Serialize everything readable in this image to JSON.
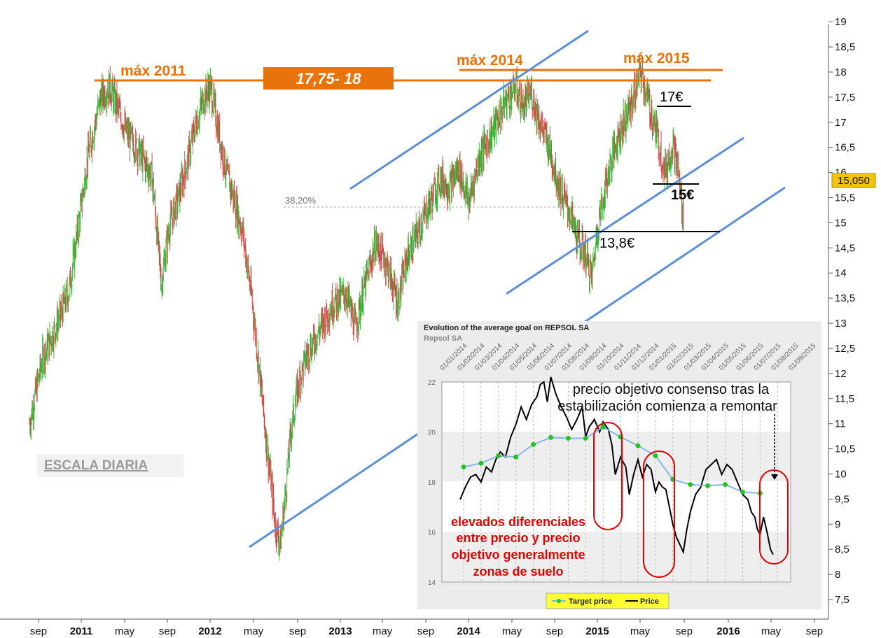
{
  "chart_data": [
    {
      "type": "candlestick",
      "scale": "daily",
      "ylim": [
        7.3,
        19.3
      ],
      "y_ticks": [
        "19",
        "18,5",
        "18",
        "17,5",
        "17",
        "16,5",
        "16",
        "15,5",
        "15",
        "14,5",
        "14",
        "13,5",
        "13",
        "12,5",
        "12",
        "11,5",
        "11",
        "10,5",
        "10",
        "9,5",
        "9",
        "8,5",
        "8",
        "7,5"
      ],
      "y_tick_values": [
        19,
        18.5,
        18,
        17.5,
        17,
        16.5,
        16,
        15.5,
        15,
        14.5,
        14,
        13.5,
        13,
        12.5,
        12,
        11.5,
        11,
        10.5,
        10,
        9.5,
        9,
        8.5,
        8,
        7.5
      ],
      "x_ticks": [
        {
          "label": "sep",
          "bold": false
        },
        {
          "label": "2011",
          "bold": true
        },
        {
          "label": "may",
          "bold": false
        },
        {
          "label": "sep",
          "bold": false
        },
        {
          "label": "2012",
          "bold": true
        },
        {
          "label": "may",
          "bold": false
        },
        {
          "label": "sep",
          "bold": false
        },
        {
          "label": "2013",
          "bold": true
        },
        {
          "label": "may",
          "bold": false
        },
        {
          "label": "sep",
          "bold": false
        },
        {
          "label": "2014",
          "bold": true
        },
        {
          "label": "may",
          "bold": false
        },
        {
          "label": "sep",
          "bold": false
        },
        {
          "label": "2015",
          "bold": true
        },
        {
          "label": "may",
          "bold": false
        },
        {
          "label": "sep",
          "bold": false
        },
        {
          "label": "2016",
          "bold": true
        },
        {
          "label": "may",
          "bold": false
        },
        {
          "label": "sep",
          "bold": false
        }
      ],
      "last_price_label": "15,050",
      "last_price": 15.05,
      "price_path": [
        [
          2010.6,
          11.0
        ],
        [
          2010.7,
          12.3
        ],
        [
          2010.8,
          12.9
        ],
        [
          2010.9,
          13.6
        ],
        [
          2010.97,
          14.8
        ],
        [
          2011.05,
          16.3
        ],
        [
          2011.15,
          17.5
        ],
        [
          2011.22,
          17.7
        ],
        [
          2011.28,
          17.3
        ],
        [
          2011.35,
          16.8
        ],
        [
          2011.45,
          16.4
        ],
        [
          2011.55,
          15.9
        ],
        [
          2011.62,
          13.8
        ],
        [
          2011.68,
          14.9
        ],
        [
          2011.75,
          15.5
        ],
        [
          2011.82,
          16.2
        ],
        [
          2011.88,
          16.9
        ],
        [
          2011.95,
          17.5
        ],
        [
          2012.0,
          17.7
        ],
        [
          2012.05,
          17.0
        ],
        [
          2012.12,
          16.0
        ],
        [
          2012.18,
          15.5
        ],
        [
          2012.25,
          14.8
        ],
        [
          2012.32,
          13.5
        ],
        [
          2012.38,
          12.0
        ],
        [
          2012.43,
          10.7
        ],
        [
          2012.47,
          9.8
        ],
        [
          2012.5,
          9.0
        ],
        [
          2012.54,
          8.6
        ],
        [
          2012.58,
          9.6
        ],
        [
          2012.62,
          10.8
        ],
        [
          2012.68,
          11.8
        ],
        [
          2012.75,
          12.4
        ],
        [
          2012.85,
          12.9
        ],
        [
          2012.95,
          13.4
        ],
        [
          2013.05,
          13.6
        ],
        [
          2013.12,
          12.9
        ],
        [
          2013.2,
          13.8
        ],
        [
          2013.28,
          14.6
        ],
        [
          2013.36,
          14.2
        ],
        [
          2013.45,
          13.4
        ],
        [
          2013.52,
          14.3
        ],
        [
          2013.62,
          14.9
        ],
        [
          2013.7,
          15.4
        ],
        [
          2013.78,
          15.9
        ],
        [
          2013.85,
          15.7
        ],
        [
          2013.92,
          16.1
        ],
        [
          2014.0,
          15.4
        ],
        [
          2014.08,
          16.3
        ],
        [
          2014.18,
          16.8
        ],
        [
          2014.28,
          17.4
        ],
        [
          2014.36,
          17.7
        ],
        [
          2014.42,
          17.3
        ],
        [
          2014.48,
          17.6
        ],
        [
          2014.55,
          17.0
        ],
        [
          2014.62,
          16.5
        ],
        [
          2014.7,
          15.7
        ],
        [
          2014.78,
          15.2
        ],
        [
          2014.85,
          14.6
        ],
        [
          2014.9,
          14.4
        ],
        [
          2014.95,
          13.9
        ],
        [
          2015.0,
          15.0
        ],
        [
          2015.08,
          16.0
        ],
        [
          2015.15,
          16.7
        ],
        [
          2015.25,
          17.3
        ],
        [
          2015.33,
          18.0
        ],
        [
          2015.38,
          17.5
        ],
        [
          2015.45,
          16.8
        ],
        [
          2015.52,
          16.0
        ],
        [
          2015.58,
          16.6
        ],
        [
          2015.62,
          16.0
        ],
        [
          2015.66,
          15.05
        ]
      ]
    },
    {
      "type": "line",
      "title": "Evolution of the average goal on REPSOL SA",
      "subtitle": "Repsol SA",
      "categories": [
        "01/01/2014",
        "01/02/2014",
        "01/03/2014",
        "01/04/2014",
        "01/05/2014",
        "01/06/2014",
        "01/07/2014",
        "01/08/2014",
        "01/09/2014",
        "01/10/2014",
        "01/11/2014",
        "01/12/2014",
        "01/01/2015",
        "01/02/2015",
        "01/03/2015",
        "01/04/2015",
        "01/05/2015",
        "01/06/2015",
        "01/07/2015",
        "01/08/2015",
        "01/09/2015"
      ],
      "ylim": [
        14,
        22
      ],
      "y_ticks": [
        14,
        16,
        18,
        20,
        22
      ],
      "series": [
        {
          "name": "Target price",
          "x": [
            0,
            1,
            2,
            3,
            4,
            5,
            6,
            7,
            8,
            9,
            10,
            11,
            12,
            13,
            14,
            15,
            16,
            17
          ],
          "values": [
            18.6,
            18.75,
            19.05,
            19.0,
            19.5,
            19.78,
            19.75,
            19.75,
            20.2,
            19.8,
            19.45,
            19.05,
            18.1,
            17.9,
            17.85,
            17.9,
            17.6,
            17.55
          ]
        },
        {
          "name": "Price",
          "x": [
            -0.2,
            0.1,
            0.4,
            0.7,
            1.0,
            1.3,
            1.6,
            1.85,
            2.1,
            2.4,
            2.7,
            3.0,
            3.3,
            3.6,
            3.9,
            4.2,
            4.4,
            4.6,
            4.8,
            5.0,
            5.3,
            5.6,
            5.9,
            6.2,
            6.5,
            6.8,
            7.0,
            7.2,
            7.5,
            7.8,
            8.0,
            8.3,
            8.5,
            8.7,
            9.0,
            9.3,
            9.5,
            9.75,
            10.0,
            10.25,
            10.5,
            10.75,
            11.0,
            11.2,
            11.4,
            11.6,
            11.8,
            12.0,
            12.2,
            12.4,
            12.6,
            12.8,
            13.0,
            13.3,
            13.6,
            13.9,
            14.2,
            14.5,
            14.8,
            15.1,
            15.4,
            15.7,
            16.0,
            16.3,
            16.5,
            16.7,
            16.85,
            17.0,
            17.2,
            17.4,
            17.6,
            17.75
          ],
          "values": [
            17.3,
            17.8,
            18.2,
            18.3,
            18.0,
            18.6,
            18.4,
            18.9,
            19.2,
            19.0,
            19.8,
            20.3,
            21.0,
            20.5,
            21.1,
            21.4,
            21.9,
            22.0,
            21.2,
            22.2,
            21.5,
            21.0,
            20.6,
            20.1,
            20.5,
            21.0,
            19.8,
            20.2,
            20.5,
            20.0,
            20.4,
            20.1,
            19.5,
            18.3,
            19.0,
            18.6,
            17.5,
            18.3,
            18.9,
            18.2,
            18.7,
            18.5,
            17.6,
            18.0,
            17.8,
            17.7,
            17.0,
            16.3,
            15.8,
            15.5,
            15.2,
            16.1,
            16.8,
            17.5,
            17.8,
            18.5,
            18.7,
            18.9,
            18.3,
            18.7,
            18.5,
            18.0,
            17.5,
            17.3,
            16.8,
            16.6,
            16.1,
            15.9,
            16.6,
            16.0,
            15.3,
            15.1
          ]
        }
      ],
      "legend": [
        "Target price",
        "Price"
      ],
      "legend_placement": "bottom"
    }
  ],
  "annotations": {
    "max_2011": "máx 2011",
    "resistance_band": "17,75- 18",
    "max_2014": "máx 2014",
    "max_2015": "máx 2015",
    "level_17": "17€",
    "level_15": "15€",
    "level_138": "13,8€",
    "fib": "38,20%",
    "scale": "ESCALA DIARIA",
    "inset_note_line1": "precio objetivo consenso tras la",
    "inset_note_line2": "estabilización comienza a remontar",
    "inset_red_line1": "elevados diferenciales",
    "inset_red_line2": "entre precio y precio",
    "inset_red_line3": "objetivo generalmente",
    "inset_red_line4": "zonas de suelo"
  },
  "colors": {
    "orange": "#e8720c",
    "trend_blue": "#5b8fd6",
    "candle_up": "#3fbf3f",
    "candle_down": "#d04545",
    "target_green": "#22c422",
    "target_line": "#86b5e8",
    "red": "#e00000",
    "price_badge": "#f5c400"
  }
}
